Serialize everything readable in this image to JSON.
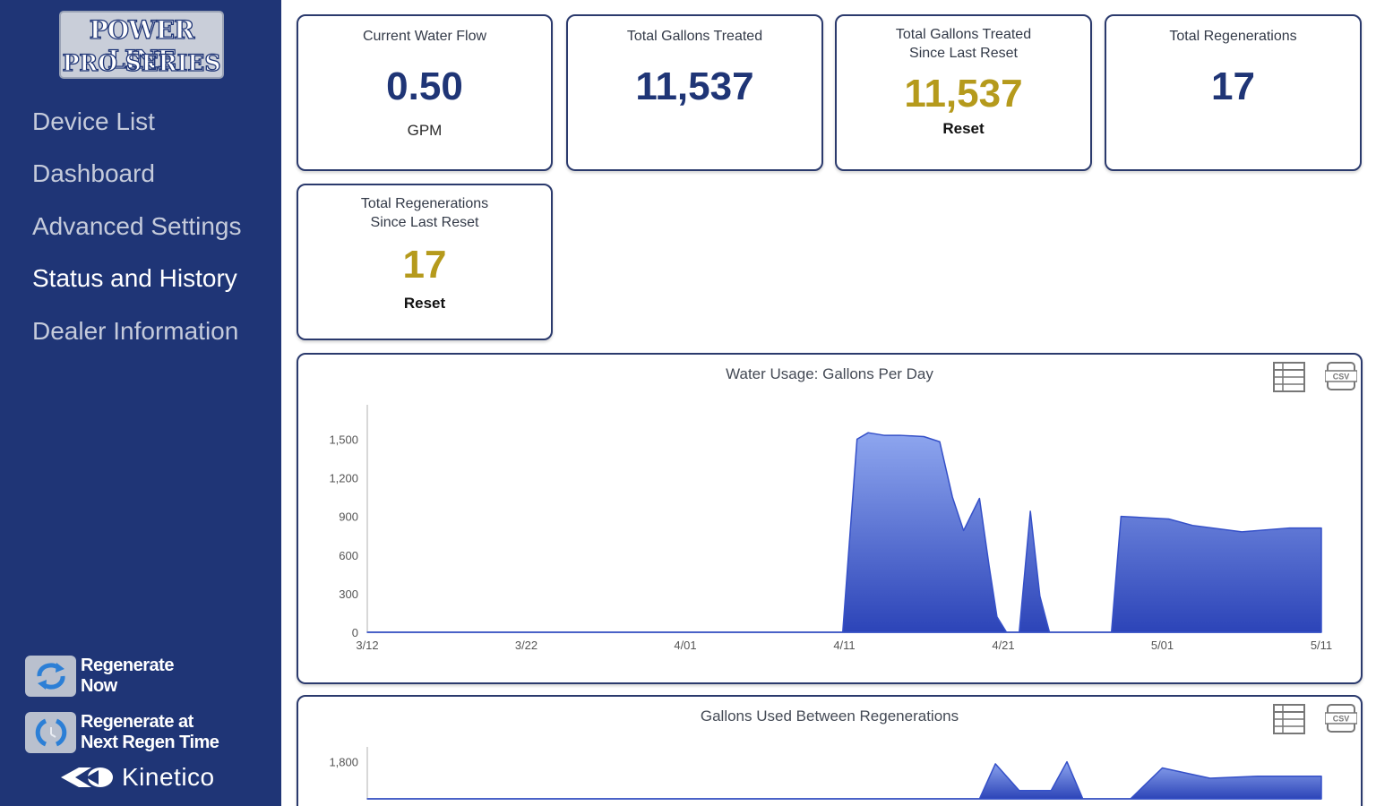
{
  "sidebar": {
    "logo_line1": "POWER LINE",
    "logo_line2": "PRO SERIES",
    "nav": [
      {
        "label": "Device List",
        "active": false
      },
      {
        "label": "Dashboard",
        "active": false
      },
      {
        "label": "Advanced Settings",
        "active": false
      },
      {
        "label": "Status and History",
        "active": true
      },
      {
        "label": "Dealer Information",
        "active": false
      }
    ],
    "actions": [
      {
        "line1": "Regenerate",
        "line2": "Now",
        "icon": "regenerate-now-icon"
      },
      {
        "line1": "Regenerate at",
        "line2": "Next Regen Time",
        "icon": "regenerate-scheduled-icon"
      }
    ],
    "brand": "Kinetico"
  },
  "cards": {
    "flow": {
      "title": "Current Water Flow",
      "value": "0.50",
      "unit": "GPM"
    },
    "gallons": {
      "title": "Total Gallons Treated",
      "value": "11,537"
    },
    "gallons_since": {
      "title1": "Total Gallons Treated",
      "title2": "Since Last Reset",
      "value": "11,537",
      "reset": "Reset"
    },
    "regens": {
      "title": "Total Regenerations",
      "value": "17"
    },
    "regens_since": {
      "title1": "Total Regenerations",
      "title2": "Since Last Reset",
      "value": "17",
      "reset": "Reset"
    }
  },
  "colors": {
    "sidebar": "#1f3576",
    "accent_gold": "#b59a1c",
    "area_fill_top": "#8ea6ef",
    "area_fill_bottom": "#2c44b8"
  },
  "icons": {
    "table": "table-icon",
    "csv": "csv-icon"
  },
  "chart_data": [
    {
      "type": "area",
      "title": "Water Usage: Gallons Per Day",
      "xlabel": "",
      "ylabel": "",
      "x_ticks": [
        "3/12",
        "3/22",
        "4/01",
        "4/11",
        "4/21",
        "5/01",
        "5/11"
      ],
      "y_ticks": [
        "0",
        "300",
        "600",
        "900",
        "1,200",
        "1,500"
      ],
      "ylim": [
        0,
        1600
      ],
      "xlim": [
        0,
        60
      ],
      "grid": false,
      "legend": "none",
      "x": [
        0,
        29.9,
        30.8,
        31.5,
        32.5,
        33.5,
        35.0,
        36.0,
        36.8,
        37.5,
        38.5,
        39.1,
        39.6,
        40.2,
        41.0,
        41.7,
        42.3,
        42.9,
        43.6,
        44.3,
        45.3,
        46.2,
        46.8,
        47.4,
        50.4,
        51.9,
        55.0,
        58.0,
        60.0
      ],
      "series": [
        {
          "values": [
            0,
            0,
            1500,
            1550,
            1530,
            1530,
            1520,
            1480,
            1050,
            790,
            1040,
            520,
            120,
            0,
            0,
            940,
            280,
            0,
            0,
            0,
            0,
            0,
            0,
            900,
            880,
            830,
            780,
            810,
            810
          ]
        }
      ]
    },
    {
      "type": "area",
      "title": "Gallons Used Between Regenerations",
      "xlabel": "",
      "ylabel": "",
      "x_ticks": [],
      "y_ticks": [
        "1,800"
      ],
      "ylim": [
        0,
        2000
      ],
      "xlim": [
        0,
        60
      ],
      "grid": false,
      "legend": "none",
      "x": [
        0,
        38.5,
        39.5,
        41.0,
        43.0,
        44.0,
        45.0,
        48.0,
        50.0,
        53.0,
        56.0,
        60.0
      ],
      "series": [
        {
          "values": [
            0,
            0,
            1700,
            400,
            400,
            1800,
            0,
            0,
            1500,
            1000,
            1100,
            1100
          ]
        }
      ]
    }
  ]
}
